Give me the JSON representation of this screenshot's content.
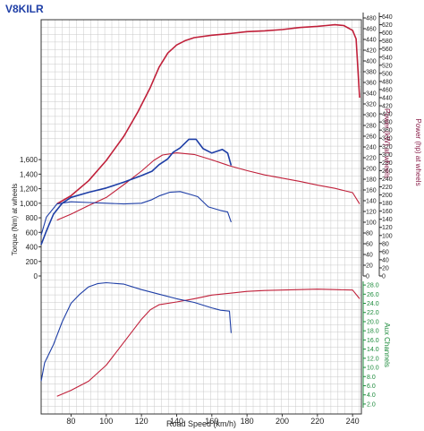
{
  "title": "V8KILR",
  "colors": {
    "blue": "#1e3ea6",
    "red": "#c0203a",
    "green": "#1b8a3a",
    "maroon": "#8a1f4a",
    "grid": "#c8c8c8",
    "frame": "#333333",
    "text": "#222222"
  },
  "chart_data": {
    "type": "line",
    "title": "V8KILR",
    "xlabel": "Road Speed (km/h)",
    "x_ticks": [
      "80",
      "100",
      "120",
      "140",
      "160",
      "180",
      "200",
      "220",
      "240"
    ],
    "xlim": [
      63,
      245
    ],
    "grid": true,
    "axes": {
      "torque": {
        "label": "Torque (Nm) at wheels",
        "ticks": [
          "0",
          "200",
          "400",
          "600",
          "800",
          "1,000",
          "1,200",
          "1,400",
          "1,600"
        ],
        "range": [
          0,
          1700
        ]
      },
      "power_kw": {
        "label": "Power (kW) at wheels",
        "ticks": [
          "0",
          "20",
          "40",
          "60",
          "80",
          "100",
          "120",
          "140",
          "160",
          "180",
          "200",
          "220",
          "240",
          "260",
          "280",
          "300",
          "320",
          "340",
          "360",
          "380",
          "400",
          "420",
          "440",
          "460",
          "480"
        ],
        "range": [
          0,
          490
        ]
      },
      "power_hp": {
        "label": "Power (hp) at wheels",
        "ticks": [
          "0",
          "20",
          "40",
          "60",
          "80",
          "100",
          "120",
          "140",
          "160",
          "180",
          "200",
          "220",
          "240",
          "260",
          "280",
          "300",
          "320",
          "340",
          "360",
          "380",
          "400",
          "420",
          "440",
          "460",
          "480",
          "500",
          "520",
          "540",
          "560",
          "580",
          "600",
          "620",
          "640"
        ],
        "range": [
          0,
          650
        ]
      },
      "aux": {
        "label": "Aux Channels",
        "ticks": [
          "2.0",
          "4.0",
          "6.0",
          "8.0",
          "10.0",
          "12.0",
          "14.0",
          "16.0",
          "18.0",
          "20.0",
          "22.0",
          "24.0",
          "26.0",
          "28.0"
        ],
        "range": [
          1.2,
          28.8
        ]
      }
    },
    "series": [
      {
        "axis": "power_hp",
        "color": "red",
        "width": 1.6,
        "points": [
          [
            72,
            178
          ],
          [
            80,
            198
          ],
          [
            90,
            235
          ],
          [
            100,
            285
          ],
          [
            110,
            345
          ],
          [
            118,
            405
          ],
          [
            125,
            465
          ],
          [
            130,
            515
          ],
          [
            135,
            550
          ],
          [
            140,
            570
          ],
          [
            145,
            581
          ],
          [
            150,
            588
          ],
          [
            160,
            594
          ],
          [
            170,
            598
          ],
          [
            180,
            603
          ],
          [
            190,
            605
          ],
          [
            200,
            608
          ],
          [
            210,
            613
          ],
          [
            220,
            616
          ],
          [
            225,
            618
          ],
          [
            230,
            620
          ],
          [
            235,
            618
          ],
          [
            240,
            606
          ],
          [
            242,
            585
          ],
          [
            244,
            440
          ]
        ]
      },
      {
        "axis": "power_kw",
        "color": "red",
        "width": 1.1,
        "points": [
          [
            72,
            104
          ],
          [
            80,
            115
          ],
          [
            90,
            131
          ],
          [
            100,
            146
          ],
          [
            110,
            170
          ],
          [
            120,
            195
          ],
          [
            127,
            215
          ],
          [
            132,
            225
          ],
          [
            140,
            229
          ],
          [
            150,
            226
          ],
          [
            160,
            216
          ],
          [
            170,
            205
          ],
          [
            180,
            196
          ],
          [
            190,
            188
          ],
          [
            200,
            182
          ],
          [
            210,
            176
          ],
          [
            220,
            169
          ],
          [
            230,
            163
          ],
          [
            240,
            155
          ],
          [
            244,
            134
          ]
        ]
      },
      {
        "axis": "torque",
        "color": "blue",
        "width": 1.6,
        "points": [
          [
            63,
            430
          ],
          [
            66,
            620
          ],
          [
            70,
            850
          ],
          [
            75,
            1000
          ],
          [
            80,
            1080
          ],
          [
            90,
            1150
          ],
          [
            100,
            1210
          ],
          [
            110,
            1290
          ],
          [
            120,
            1380
          ],
          [
            126,
            1440
          ],
          [
            130,
            1530
          ],
          [
            135,
            1610
          ],
          [
            138,
            1700
          ],
          [
            142,
            1760
          ],
          [
            147,
            1880
          ],
          [
            151,
            1880
          ],
          [
            155,
            1750
          ],
          [
            160,
            1690
          ],
          [
            166,
            1740
          ],
          [
            169,
            1690
          ],
          [
            171,
            1520
          ]
        ]
      },
      {
        "axis": "torque",
        "color": "blue",
        "width": 1.1,
        "points": [
          [
            63,
            560
          ],
          [
            66,
            810
          ],
          [
            72,
            990
          ],
          [
            80,
            1020
          ],
          [
            90,
            1010
          ],
          [
            100,
            1000
          ],
          [
            110,
            990
          ],
          [
            120,
            1000
          ],
          [
            126,
            1050
          ],
          [
            130,
            1100
          ],
          [
            136,
            1150
          ],
          [
            142,
            1160
          ],
          [
            148,
            1120
          ],
          [
            152,
            1090
          ],
          [
            158,
            950
          ],
          [
            165,
            900
          ],
          [
            169,
            880
          ],
          [
            171,
            740
          ]
        ]
      },
      {
        "axis": "aux",
        "color": "red",
        "width": 1.1,
        "points": [
          [
            72,
            3.7
          ],
          [
            80,
            5.0
          ],
          [
            90,
            7.0
          ],
          [
            100,
            10.5
          ],
          [
            110,
            15.5
          ],
          [
            120,
            20.5
          ],
          [
            125,
            22.6
          ],
          [
            130,
            23.7
          ],
          [
            140,
            24.3
          ],
          [
            150,
            25.0
          ],
          [
            160,
            25.8
          ],
          [
            170,
            26.2
          ],
          [
            180,
            26.6
          ],
          [
            190,
            26.8
          ],
          [
            200,
            26.9
          ],
          [
            210,
            27.0
          ],
          [
            220,
            27.1
          ],
          [
            230,
            27.0
          ],
          [
            240,
            26.9
          ],
          [
            244,
            25.0
          ]
        ]
      },
      {
        "axis": "aux",
        "color": "blue",
        "width": 1.1,
        "points": [
          [
            63,
            7.0
          ],
          [
            65,
            11.0
          ],
          [
            70,
            15.0
          ],
          [
            75,
            20.0
          ],
          [
            80,
            24.0
          ],
          [
            85,
            26.0
          ],
          [
            90,
            27.6
          ],
          [
            95,
            28.3
          ],
          [
            100,
            28.5
          ],
          [
            110,
            28.2
          ],
          [
            120,
            27.0
          ],
          [
            130,
            26.0
          ],
          [
            140,
            25.0
          ],
          [
            150,
            24.2
          ],
          [
            160,
            23.0
          ],
          [
            165,
            22.5
          ],
          [
            170,
            22.3
          ],
          [
            171,
            17.5
          ]
        ]
      }
    ]
  }
}
